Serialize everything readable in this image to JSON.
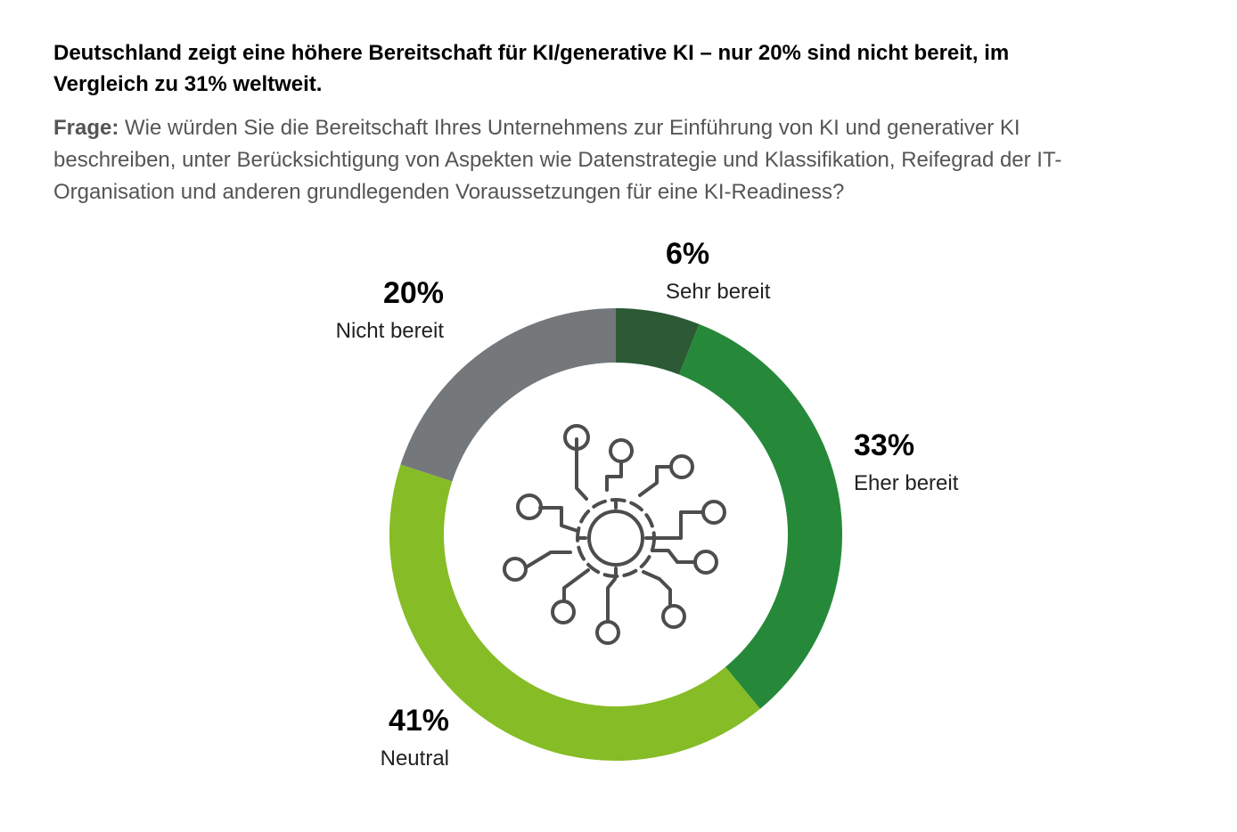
{
  "header": {
    "title": "Deutschland zeigt eine höhere Bereitschaft für KI/generative KI – nur 20% sind nicht bereit, im Vergleich zu 31% weltweit.",
    "question_label": "Frage:",
    "question_text": "Wie würden Sie die Bereitschaft Ihres Unternehmens zur Einführung von KI und generativer KI beschreiben, unter Berücksichtigung von Aspekten wie Datenstrategie und Klassifikation, Reifegrad der IT-Organisation und anderen grundlegenden Voraussetzungen für eine KI-Readiness?"
  },
  "center_icon": "ai-circuit-gear-icon",
  "chart_data": {
    "type": "pie",
    "subtype": "donut",
    "unit": "%",
    "slices": [
      {
        "label": "Sehr bereit",
        "value": 6,
        "display": "6%",
        "color": "#2b5a34"
      },
      {
        "label": "Eher bereit",
        "value": 33,
        "display": "33%",
        "color": "#26893a"
      },
      {
        "label": "Neutral",
        "value": 41,
        "display": "41%",
        "color": "#86bc25"
      },
      {
        "label": "Nicht bereit",
        "value": 20,
        "display": "20%",
        "color": "#75787b"
      }
    ]
  }
}
